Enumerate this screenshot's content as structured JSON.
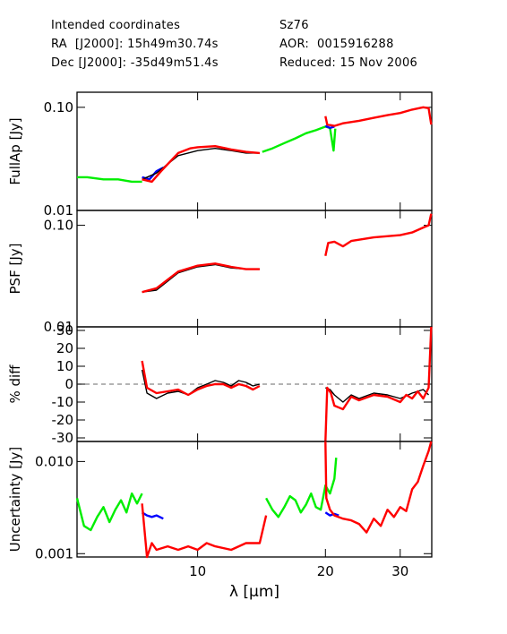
{
  "header": {
    "line1_left": "Intended coordinates",
    "line2_left": "RA  [J2000]: 15h49m30.74s",
    "line3_left": "Dec [J2000]: -35d49m51.4s",
    "line1_right": "Sz76",
    "line2_right": "AOR:  0015916288",
    "line3_right": "Reduced: 15 Nov 2006"
  },
  "colors": {
    "red": "#ff0000",
    "green": "#00ee00",
    "blue": "#0000ff",
    "black": "#000000",
    "dash": "#888888"
  },
  "chart_data": [
    {
      "type": "line",
      "ylabel": "FullAp [Jy]",
      "yscale": "log",
      "ylim": [
        0.01,
        0.14
      ],
      "yticks": [
        {
          "v": 0.1,
          "label": "0.10"
        },
        {
          "v": 0.01,
          "label": "0.01"
        }
      ],
      "series": [
        {
          "color": "green",
          "points": [
            [
              5.2,
              0.021
            ],
            [
              5.5,
              0.021
            ],
            [
              6.0,
              0.02
            ],
            [
              6.5,
              0.02
            ],
            [
              7.0,
              0.019
            ],
            [
              7.4,
              0.019
            ]
          ]
        },
        {
          "color": "blue",
          "points": [
            [
              7.4,
              0.021
            ],
            [
              7.7,
              0.02
            ],
            [
              8.0,
              0.024
            ],
            [
              8.3,
              0.026
            ]
          ]
        },
        {
          "color": "black",
          "points": [
            [
              7.4,
              0.02
            ],
            [
              8.0,
              0.023
            ],
            [
              9.0,
              0.034
            ],
            [
              10.0,
              0.038
            ],
            [
              11.0,
              0.04
            ],
            [
              12.0,
              0.038
            ],
            [
              13.0,
              0.036
            ],
            [
              14.0,
              0.036
            ]
          ]
        },
        {
          "color": "red",
          "points": [
            [
              7.4,
              0.02
            ],
            [
              7.8,
              0.019
            ],
            [
              8.2,
              0.024
            ],
            [
              9.0,
              0.036
            ],
            [
              9.6,
              0.04
            ],
            [
              10.0,
              0.041
            ],
            [
              11.0,
              0.042
            ],
            [
              12.0,
              0.039
            ],
            [
              13.0,
              0.037
            ],
            [
              14.0,
              0.036
            ]
          ]
        },
        {
          "color": "green",
          "points": [
            [
              14.2,
              0.037
            ],
            [
              15.0,
              0.04
            ],
            [
              16.0,
              0.045
            ],
            [
              17.0,
              0.05
            ],
            [
              18.0,
              0.056
            ],
            [
              19.0,
              0.06
            ],
            [
              20.0,
              0.065
            ],
            [
              20.5,
              0.063
            ],
            [
              20.9,
              0.038
            ],
            [
              21.1,
              0.062
            ]
          ]
        },
        {
          "color": "blue",
          "points": [
            [
              20.0,
              0.066
            ],
            [
              20.5,
              0.063
            ],
            [
              21.0,
              0.065
            ]
          ]
        },
        {
          "color": "red",
          "points": [
            [
              20.0,
              0.082
            ],
            [
              20.2,
              0.068
            ],
            [
              21.0,
              0.066
            ],
            [
              22.0,
              0.07
            ],
            [
              24.0,
              0.074
            ],
            [
              26.0,
              0.079
            ],
            [
              28.0,
              0.084
            ],
            [
              30.0,
              0.088
            ],
            [
              32.0,
              0.095
            ],
            [
              34.0,
              0.1
            ],
            [
              35.0,
              0.098
            ],
            [
              35.5,
              0.068
            ]
          ]
        }
      ]
    },
    {
      "type": "line",
      "ylabel": "PSF [Jy]",
      "yscale": "log",
      "ylim": [
        0.01,
        0.14
      ],
      "yticks": [
        {
          "v": 0.1,
          "label": "0.10"
        },
        {
          "v": 0.01,
          "label": "0.01"
        }
      ],
      "series": [
        {
          "color": "black",
          "points": [
            [
              7.4,
              0.022
            ],
            [
              8.0,
              0.023
            ],
            [
              9.0,
              0.034
            ],
            [
              10.0,
              0.039
            ],
            [
              11.0,
              0.041
            ],
            [
              12.0,
              0.038
            ],
            [
              13.0,
              0.037
            ],
            [
              14.0,
              0.037
            ]
          ]
        },
        {
          "color": "red",
          "points": [
            [
              7.4,
              0.022
            ],
            [
              8.0,
              0.024
            ],
            [
              9.0,
              0.035
            ],
            [
              10.0,
              0.04
            ],
            [
              11.0,
              0.042
            ],
            [
              12.0,
              0.039
            ],
            [
              13.0,
              0.037
            ],
            [
              14.0,
              0.037
            ]
          ]
        },
        {
          "color": "red",
          "points": [
            [
              20.0,
              0.05
            ],
            [
              20.3,
              0.067
            ],
            [
              21.0,
              0.069
            ],
            [
              22.0,
              0.062
            ],
            [
              23.0,
              0.07
            ],
            [
              26.0,
              0.076
            ],
            [
              30.0,
              0.08
            ],
            [
              32.0,
              0.085
            ],
            [
              34.0,
              0.095
            ],
            [
              35.0,
              0.1
            ],
            [
              35.5,
              0.13
            ]
          ]
        }
      ]
    },
    {
      "type": "line",
      "ylabel": "% diff",
      "yscale": "linear",
      "ylim": [
        -32,
        32
      ],
      "yticks": [
        {
          "v": 30,
          "label": "30"
        },
        {
          "v": 20,
          "label": "20"
        },
        {
          "v": 10,
          "label": "10"
        },
        {
          "v": 0,
          "label": "0"
        },
        {
          "v": -10,
          "label": "-10"
        },
        {
          "v": -20,
          "label": "-20"
        },
        {
          "v": -30,
          "label": "-30"
        }
      ],
      "zero_line": true,
      "series": [
        {
          "color": "black",
          "points": [
            [
              7.4,
              8
            ],
            [
              7.6,
              -5
            ],
            [
              8.0,
              -8
            ],
            [
              8.5,
              -5
            ],
            [
              9.0,
              -4
            ],
            [
              9.5,
              -6
            ],
            [
              10.0,
              -2
            ],
            [
              10.5,
              0
            ],
            [
              11.0,
              2
            ],
            [
              11.5,
              1
            ],
            [
              12.0,
              -1
            ],
            [
              12.5,
              2
            ],
            [
              13.0,
              1
            ],
            [
              13.5,
              -1
            ],
            [
              14.0,
              0
            ]
          ]
        },
        {
          "color": "red",
          "points": [
            [
              7.4,
              13
            ],
            [
              7.6,
              -2
            ],
            [
              8.0,
              -5
            ],
            [
              8.5,
              -4
            ],
            [
              9.0,
              -3
            ],
            [
              9.5,
              -6
            ],
            [
              10.0,
              -3
            ],
            [
              10.5,
              -1
            ],
            [
              11.0,
              0
            ],
            [
              11.5,
              0
            ],
            [
              12.0,
              -2
            ],
            [
              12.5,
              0
            ],
            [
              13.0,
              -1
            ],
            [
              13.5,
              -3
            ],
            [
              14.0,
              -1
            ]
          ]
        },
        {
          "color": "black",
          "points": [
            [
              20.0,
              -2
            ],
            [
              20.5,
              -3
            ],
            [
              21.0,
              -6
            ],
            [
              22.0,
              -10
            ],
            [
              23.0,
              -6
            ],
            [
              24.0,
              -8
            ],
            [
              26.0,
              -5
            ],
            [
              28.0,
              -6
            ],
            [
              30.0,
              -8
            ],
            [
              32.0,
              -5
            ],
            [
              34.0,
              -3
            ],
            [
              35.0,
              -6
            ]
          ]
        },
        {
          "color": "red",
          "points": [
            [
              20.0,
              -32
            ],
            [
              20.2,
              -2
            ],
            [
              20.6,
              -5
            ],
            [
              21.0,
              -12
            ],
            [
              22.0,
              -14
            ],
            [
              23.0,
              -7
            ],
            [
              24.0,
              -9
            ],
            [
              26.0,
              -6
            ],
            [
              28.0,
              -7
            ],
            [
              30.0,
              -10
            ],
            [
              31.0,
              -6
            ],
            [
              32.0,
              -8
            ],
            [
              33.0,
              -4
            ],
            [
              34.0,
              -8
            ],
            [
              35.0,
              -2
            ],
            [
              35.5,
              32
            ]
          ]
        }
      ]
    },
    {
      "type": "line",
      "ylabel": "Uncertainty [Jy]",
      "yscale": "log",
      "ylim": [
        0.00092,
        0.0165
      ],
      "yticks": [
        {
          "v": 0.01,
          "label": "0.010"
        },
        {
          "v": 0.001,
          "label": "0.001"
        }
      ],
      "xlabel": "λ [μm]",
      "xscale": "log",
      "xlim": [
        5.2,
        35.6
      ],
      "xticks": [
        {
          "v": 10,
          "label": "10"
        },
        {
          "v": 20,
          "label": "20"
        },
        {
          "v": 30,
          "label": "30"
        }
      ],
      "series": [
        {
          "color": "green",
          "points": [
            [
              5.2,
              0.004
            ],
            [
              5.4,
              0.002
            ],
            [
              5.6,
              0.0018
            ],
            [
              5.8,
              0.0025
            ],
            [
              6.0,
              0.0032
            ],
            [
              6.2,
              0.0022
            ],
            [
              6.4,
              0.003
            ],
            [
              6.6,
              0.0038
            ],
            [
              6.8,
              0.0028
            ],
            [
              7.0,
              0.0045
            ],
            [
              7.2,
              0.0035
            ],
            [
              7.4,
              0.0045
            ]
          ]
        },
        {
          "color": "blue",
          "points": [
            [
              7.4,
              0.0028
            ],
            [
              7.6,
              0.0026
            ],
            [
              7.8,
              0.0025
            ],
            [
              8.0,
              0.0026
            ],
            [
              8.3,
              0.0024
            ]
          ]
        },
        {
          "color": "red",
          "points": [
            [
              7.4,
              0.0035
            ],
            [
              7.6,
              0.0009
            ],
            [
              7.8,
              0.0013
            ],
            [
              8.0,
              0.0011
            ],
            [
              8.5,
              0.0012
            ],
            [
              9.0,
              0.0011
            ],
            [
              9.5,
              0.0012
            ],
            [
              10.0,
              0.0011
            ],
            [
              10.5,
              0.0013
            ],
            [
              11.0,
              0.0012
            ],
            [
              12.0,
              0.0011
            ],
            [
              13.0,
              0.0013
            ],
            [
              14.0,
              0.0013
            ],
            [
              14.5,
              0.0026
            ]
          ]
        },
        {
          "color": "green",
          "points": [
            [
              14.5,
              0.004
            ],
            [
              15.0,
              0.003
            ],
            [
              15.5,
              0.0025
            ],
            [
              16.0,
              0.0032
            ],
            [
              16.5,
              0.0042
            ],
            [
              17.0,
              0.0038
            ],
            [
              17.5,
              0.0028
            ],
            [
              18.0,
              0.0034
            ],
            [
              18.5,
              0.0045
            ],
            [
              19.0,
              0.0032
            ],
            [
              19.5,
              0.003
            ],
            [
              20.0,
              0.0055
            ],
            [
              20.5,
              0.0045
            ],
            [
              21.0,
              0.0065
            ],
            [
              21.2,
              0.011
            ]
          ]
        },
        {
          "color": "blue",
          "points": [
            [
              20.0,
              0.0028
            ],
            [
              20.5,
              0.0026
            ],
            [
              21.0,
              0.0027
            ],
            [
              21.5,
              0.0026
            ]
          ]
        },
        {
          "color": "red",
          "points": [
            [
              20.0,
              0.018
            ],
            [
              20.1,
              0.004
            ],
            [
              20.5,
              0.003
            ],
            [
              21.0,
              0.0026
            ],
            [
              22.0,
              0.0024
            ],
            [
              23.0,
              0.0023
            ],
            [
              24.0,
              0.0021
            ],
            [
              25.0,
              0.0017
            ],
            [
              26.0,
              0.0024
            ],
            [
              27.0,
              0.002
            ],
            [
              28.0,
              0.003
            ],
            [
              29.0,
              0.0025
            ],
            [
              30.0,
              0.0032
            ],
            [
              31.0,
              0.0029
            ],
            [
              32.0,
              0.005
            ],
            [
              33.0,
              0.006
            ],
            [
              34.0,
              0.009
            ],
            [
              35.0,
              0.013
            ],
            [
              35.5,
              0.0165
            ]
          ]
        }
      ]
    }
  ]
}
